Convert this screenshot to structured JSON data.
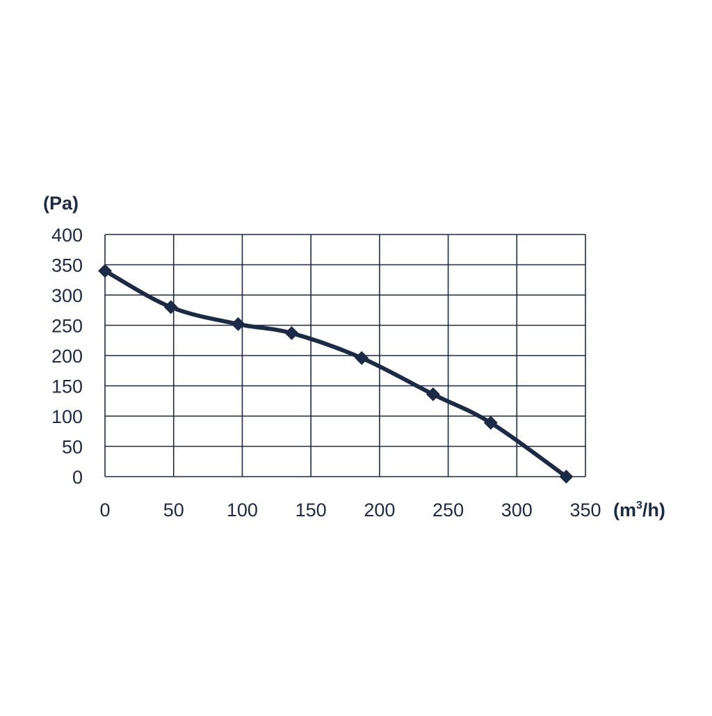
{
  "chart_data": {
    "type": "line",
    "ylabel": "(Pa)",
    "xlabel_prefix": "(m",
    "xlabel_sup": "3",
    "xlabel_suffix": "/h)",
    "xlim": [
      0,
      350
    ],
    "ylim": [
      0,
      400
    ],
    "xticks": [
      "0",
      "50",
      "100",
      "150",
      "200",
      "250",
      "300",
      "350"
    ],
    "yticks": [
      "400",
      "350",
      "300",
      "250",
      "200",
      "150",
      "100",
      "50",
      "0"
    ],
    "grid": true,
    "x": [
      0,
      48,
      97,
      136,
      187,
      239,
      281,
      336
    ],
    "y": [
      340,
      280,
      252,
      237,
      196,
      136,
      89,
      0
    ],
    "line_color": "#1b2a47",
    "grid_color": "#1b2a47"
  }
}
